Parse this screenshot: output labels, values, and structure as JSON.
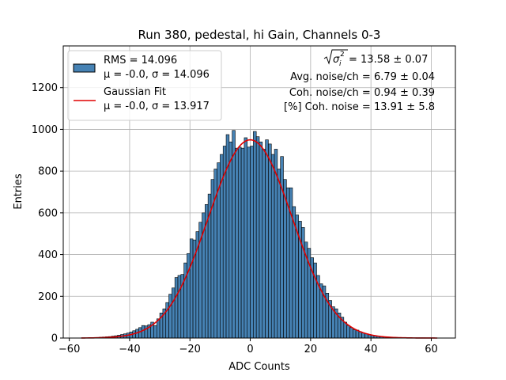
{
  "chart_data": {
    "type": "bar",
    "title": "Run 380, pedestal, hi Gain, Channels 0-3",
    "xlabel": "ADC Counts",
    "ylabel": "Entries",
    "xlim": [
      -62,
      68
    ],
    "ylim": [
      0,
      1400
    ],
    "x_ticks": [
      -60,
      -40,
      -20,
      0,
      20,
      40,
      60
    ],
    "y_ticks": [
      0,
      200,
      400,
      600,
      800,
      1000,
      1200
    ],
    "grid": true,
    "bin_width": 1,
    "bin_lefts": [
      -56,
      -55,
      -54,
      -53,
      -52,
      -51,
      -50,
      -49,
      -48,
      -47,
      -46,
      -45,
      -44,
      -43,
      -42,
      -41,
      -40,
      -39,
      -38,
      -37,
      -36,
      -35,
      -34,
      -33,
      -32,
      -31,
      -30,
      -29,
      -28,
      -27,
      -26,
      -25,
      -24,
      -23,
      -22,
      -21,
      -20,
      -19,
      -18,
      -17,
      -16,
      -15,
      -14,
      -13,
      -12,
      -11,
      -10,
      -9,
      -8,
      -7,
      -6,
      -5,
      -4,
      -3,
      -2,
      -1,
      0,
      1,
      2,
      3,
      4,
      5,
      6,
      7,
      8,
      9,
      10,
      11,
      12,
      13,
      14,
      15,
      16,
      17,
      18,
      19,
      20,
      21,
      22,
      23,
      24,
      25,
      26,
      27,
      28,
      29,
      30,
      31,
      32,
      33,
      34,
      35,
      36,
      37,
      38,
      39,
      40,
      41,
      42,
      43,
      44,
      45,
      46,
      47,
      48,
      49,
      50,
      51,
      52,
      53,
      54,
      55,
      56,
      57,
      58,
      59,
      60,
      61
    ],
    "counts": [
      1,
      1,
      1,
      2,
      2,
      3,
      4,
      5,
      6,
      7,
      9,
      11,
      14,
      17,
      20,
      24,
      29,
      35,
      42,
      50,
      60,
      58,
      64,
      76,
      60,
      92,
      120,
      140,
      170,
      210,
      240,
      290,
      300,
      305,
      360,
      405,
      475,
      470,
      510,
      555,
      600,
      640,
      690,
      760,
      810,
      840,
      880,
      920,
      975,
      940,
      995,
      910,
      915,
      910,
      960,
      915,
      920,
      990,
      965,
      940,
      905,
      950,
      930,
      880,
      905,
      810,
      870,
      760,
      720,
      720,
      630,
      590,
      560,
      530,
      460,
      430,
      385,
      360,
      300,
      260,
      250,
      215,
      180,
      150,
      140,
      120,
      100,
      76,
      60,
      50,
      40,
      38,
      30,
      25,
      20,
      17,
      14,
      11,
      9,
      7,
      6,
      5,
      4,
      3,
      3,
      2,
      2,
      1,
      1,
      1,
      1,
      1,
      1,
      1,
      0,
      0,
      0,
      0
    ],
    "fit": {
      "amplitude": 950,
      "mean": 0,
      "sigma": 13.917
    },
    "legend_position": "upper-left",
    "legend": [
      {
        "label_line1": "RMS = 14.096",
        "label_line2": "μ = -0.0, σ = 14.096",
        "color": "#4682b4",
        "kind": "patch"
      },
      {
        "label_line1": "Gaussian Fit",
        "label_line2": "μ = -0.0, σ = 13.917",
        "color": "#e00000",
        "kind": "line"
      }
    ],
    "annotations": {
      "sigma_value": " = 13.58 ± 0.07",
      "avg_noise": "Avg. noise/ch = 6.79 ± 0.04",
      "coh_noise": "Coh. noise/ch = 0.94 ± 0.39",
      "coh_pct": "[%] Coh. noise = 13.91 ± 5.8"
    }
  }
}
